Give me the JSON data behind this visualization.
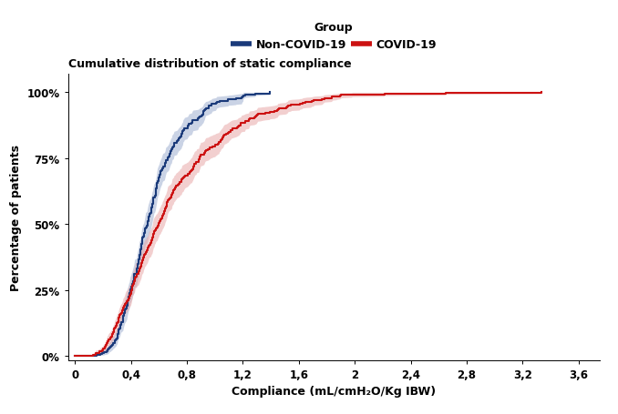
{
  "title": "Cumulative distribution of static compliance",
  "xlabel": "Compliance (mL/cmH₂O/Kg IBW)",
  "ylabel": "Percentage of patients",
  "legend_title": "Group",
  "legend_labels": [
    "Non-COVID-19",
    "COVID-19"
  ],
  "non_covid_color": "#1a3a7a",
  "covid_color": "#cc1111",
  "non_covid_ci_color": "#a0b0d0",
  "covid_ci_color": "#e8a8a8",
  "xlim": [
    -0.05,
    3.75
  ],
  "ylim": [
    -0.015,
    1.07
  ],
  "xticks": [
    0,
    0.4,
    0.8,
    1.2,
    1.6,
    2.0,
    2.4,
    2.8,
    3.2,
    3.6
  ],
  "yticks": [
    0,
    0.25,
    0.5,
    0.75,
    1.0
  ],
  "ytick_labels": [
    "0%",
    "25%",
    "50%",
    "75%",
    "100%"
  ],
  "background_color": "#ffffff",
  "title_fontsize": 9,
  "label_fontsize": 9,
  "tick_fontsize": 8.5,
  "legend_fontsize": 9
}
